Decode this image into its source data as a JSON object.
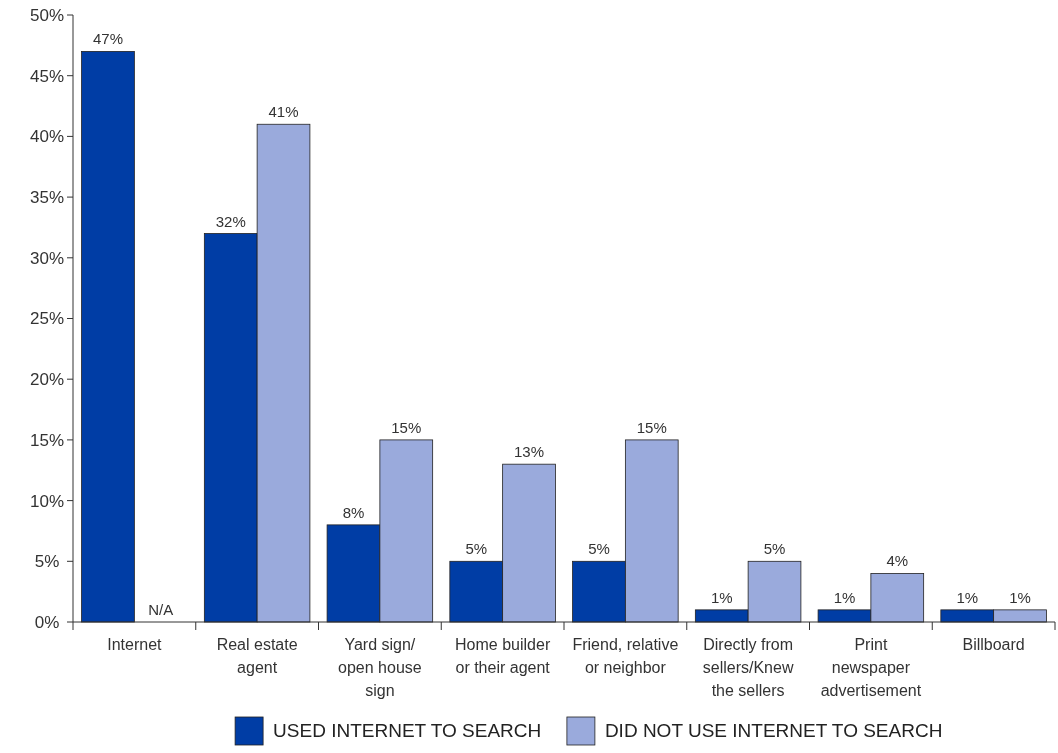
{
  "chart_data": {
    "type": "bar",
    "categories": [
      "Internet",
      "Real estate\nagent",
      "Yard sign/\nopen house\nsign",
      "Home builder\nor their agent",
      "Friend, relative\nor neighbor",
      "Directly from\nsellers/Knew\nthe sellers",
      "Print\nnewspaper\nadvertisement",
      "Billboard"
    ],
    "series": [
      {
        "name": "USED INTERNET TO SEARCH",
        "color": "#003da5",
        "values": [
          47,
          32,
          8,
          5,
          5,
          1,
          1,
          1
        ],
        "value_labels": [
          "47%",
          "32%",
          "8%",
          "5%",
          "5%",
          "1%",
          "1%",
          "1%"
        ]
      },
      {
        "name": "DID NOT USE INTERNET TO SEARCH",
        "color": "#9aaadc",
        "values": [
          null,
          41,
          15,
          13,
          15,
          5,
          4,
          1
        ],
        "value_labels": [
          "N/A",
          "41%",
          "15%",
          "13%",
          "15%",
          "5%",
          "4%",
          "1%"
        ]
      }
    ],
    "ylim": [
      0,
      50
    ],
    "yticks": [
      {
        "value": 0,
        "label": "0%"
      },
      {
        "value": 5,
        "label": "5%"
      },
      {
        "value": 10,
        "label": "10%"
      },
      {
        "value": 15,
        "label": "15%"
      },
      {
        "value": 20,
        "label": "20%"
      },
      {
        "value": 25,
        "label": "25%"
      },
      {
        "value": 30,
        "label": "30%"
      },
      {
        "value": 35,
        "label": "35%"
      },
      {
        "value": 40,
        "label": "40%"
      },
      {
        "value": 45,
        "label": "45%"
      },
      {
        "value": 50,
        "label": "50%"
      }
    ],
    "grid": false,
    "legend": "bottom"
  }
}
